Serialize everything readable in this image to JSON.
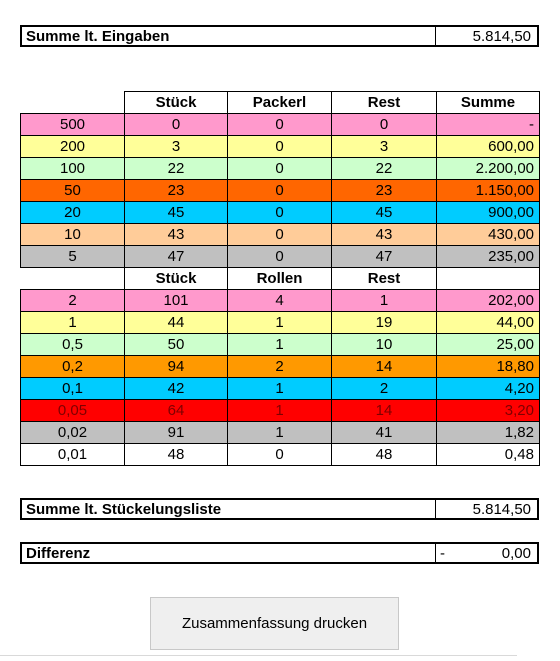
{
  "summary_top": {
    "label": "Summe lt. Eingaben",
    "value": "5.814,50"
  },
  "headers_notes": {
    "c1": "Stück",
    "c2": "Packerl",
    "c3": "Rest",
    "c4": "Summe"
  },
  "notes": [
    {
      "denom": "500",
      "stueck": "0",
      "packs": "0",
      "rest": "0",
      "summe": "-",
      "color": "#ff99cc",
      "text_color": "#000000"
    },
    {
      "denom": "200",
      "stueck": "3",
      "packs": "0",
      "rest": "3",
      "summe": "600,00",
      "color": "#ffff99",
      "text_color": "#000000"
    },
    {
      "denom": "100",
      "stueck": "22",
      "packs": "0",
      "rest": "22",
      "summe": "2.200,00",
      "color": "#ccffcc",
      "text_color": "#000000"
    },
    {
      "denom": "50",
      "stueck": "23",
      "packs": "0",
      "rest": "23",
      "summe": "1.150,00",
      "color": "#ff6600",
      "text_color": "#000000"
    },
    {
      "denom": "20",
      "stueck": "45",
      "packs": "0",
      "rest": "45",
      "summe": "900,00",
      "color": "#00ccff",
      "text_color": "#000000"
    },
    {
      "denom": "10",
      "stueck": "43",
      "packs": "0",
      "rest": "43",
      "summe": "430,00",
      "color": "#ffcc99",
      "text_color": "#000000"
    },
    {
      "denom": "5",
      "stueck": "47",
      "packs": "0",
      "rest": "47",
      "summe": "235,00",
      "color": "#c0c0c0",
      "text_color": "#000000"
    }
  ],
  "headers_coins": {
    "c1": "Stück",
    "c2": "Rollen",
    "c3": "Rest"
  },
  "coins": [
    {
      "denom": "2",
      "stueck": "101",
      "packs": "4",
      "rest": "1",
      "summe": "202,00",
      "color": "#ff99cc",
      "text_color": "#000000"
    },
    {
      "denom": "1",
      "stueck": "44",
      "packs": "1",
      "rest": "19",
      "summe": "44,00",
      "color": "#ffff99",
      "text_color": "#000000"
    },
    {
      "denom": "0,5",
      "stueck": "50",
      "packs": "1",
      "rest": "10",
      "summe": "25,00",
      "color": "#ccffcc",
      "text_color": "#000000"
    },
    {
      "denom": "0,2",
      "stueck": "94",
      "packs": "2",
      "rest": "14",
      "summe": "18,80",
      "color": "#ff9900",
      "text_color": "#000000"
    },
    {
      "denom": "0,1",
      "stueck": "42",
      "packs": "1",
      "rest": "2",
      "summe": "4,20",
      "color": "#00ccff",
      "text_color": "#000000"
    },
    {
      "denom": "0,05",
      "stueck": "64",
      "packs": "1",
      "rest": "14",
      "summe": "3,20",
      "color": "#ff0000",
      "text_color": "#7f0000"
    },
    {
      "denom": "0,02",
      "stueck": "91",
      "packs": "1",
      "rest": "41",
      "summe": "1,82",
      "color": "#c0c0c0",
      "text_color": "#000000"
    },
    {
      "denom": "0,01",
      "stueck": "48",
      "packs": "0",
      "rest": "48",
      "summe": "0,48",
      "color": "#ffffff",
      "text_color": "#000000"
    }
  ],
  "summary_list": {
    "label": "Summe lt. Stückelungsliste",
    "value": "5.814,50"
  },
  "difference": {
    "label": "Differenz",
    "sign": "-",
    "value": "0,00"
  },
  "print_button": {
    "label": "Zusammenfassung drucken"
  }
}
